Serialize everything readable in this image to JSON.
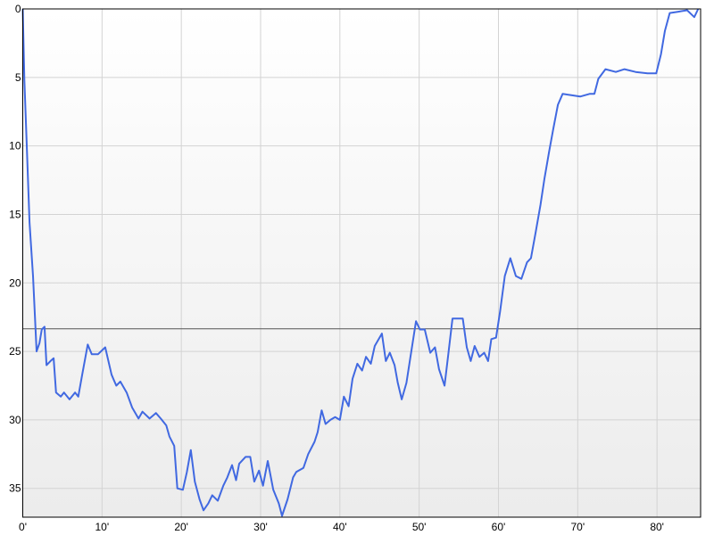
{
  "chart_data": {
    "type": "line",
    "title": "",
    "xlabel": "",
    "ylabel": "",
    "xlim": [
      0,
      85.5
    ],
    "ylim": [
      0,
      37.1
    ],
    "y_inverted": true,
    "grid": true,
    "x_ticks": [
      0,
      10,
      20,
      30,
      40,
      50,
      60,
      70,
      80
    ],
    "x_tick_labels": [
      "0'",
      "10'",
      "20'",
      "30'",
      "40'",
      "50'",
      "60'",
      "70'",
      "80'"
    ],
    "y_ticks": [
      0,
      5,
      10,
      15,
      20,
      25,
      30,
      35
    ],
    "y_tick_labels": [
      "0",
      "5",
      "10",
      "15",
      "20",
      "25",
      "30",
      "35"
    ],
    "reference_line": 23.35,
    "colors": {
      "line": "#4169e1",
      "grid": "#d3d3d3",
      "reference": "#555555",
      "bg_top": "#ffffff",
      "bg_bottom": "#ececec"
    },
    "series": [
      {
        "x": [
          0,
          0.2,
          0.5,
          0.85,
          1.3,
          1.75,
          2.1,
          2.4,
          2.75,
          3.0,
          3.5,
          3.9,
          4.2,
          4.8,
          5.2,
          5.9,
          6.6,
          7.0,
          7.5,
          8.2,
          8.7,
          9.5,
          10.4,
          11.2,
          11.8,
          12.3,
          13.1,
          13.8,
          14.6,
          15.1,
          16,
          16.8,
          17.4,
          18.1,
          18.5,
          19.1,
          19.5,
          20.2,
          20.7,
          21.2,
          21.7,
          22.3,
          22.8,
          23.4,
          23.9,
          24.6,
          25.3,
          25.8,
          26.4,
          26.9,
          27.3,
          28.1,
          28.7,
          29.2,
          29.8,
          30.3,
          30.9,
          31.6,
          32.3,
          32.7,
          33.4,
          34.1,
          34.5,
          35.4,
          36,
          36.8,
          37.2,
          37.7,
          38.2,
          38.8,
          39.4,
          40,
          40.5,
          41.1,
          41.6,
          42.2,
          42.8,
          43.3,
          43.9,
          44.4,
          45.3,
          45.8,
          46.3,
          46.9,
          47.3,
          47.8,
          48.4,
          48.9,
          49.6,
          50.1,
          50.7,
          51.4,
          52,
          52.5,
          53.2,
          53.7,
          54.2,
          54.8,
          55.5,
          56,
          56.5,
          57,
          57.6,
          58.2,
          58.7,
          59.1,
          59.7,
          60.2,
          60.8,
          61.5,
          62.2,
          62.9,
          63.6,
          64.1,
          64.7,
          65.3,
          65.8,
          66.4,
          66.9,
          67.5,
          68.1,
          69.2,
          70.3,
          71.5,
          72.1,
          72.6,
          73.5,
          74.8,
          75.9,
          77.3,
          78.8,
          79.9,
          80.5,
          81,
          81.6,
          82.7,
          83.8,
          84.7,
          85.2
        ],
        "y": [
          0,
          5.2,
          9.8,
          15.6,
          19.5,
          25,
          24.4,
          23.4,
          23.2,
          26,
          25.7,
          25.5,
          28,
          28.3,
          28,
          28.5,
          28,
          28.3,
          26.7,
          24.5,
          25.2,
          25.2,
          24.7,
          26.7,
          27.5,
          27.2,
          28,
          29.1,
          29.9,
          29.4,
          29.9,
          29.5,
          29.9,
          30.4,
          31.2,
          31.9,
          35,
          35.1,
          33.8,
          32.2,
          34.5,
          35.8,
          36.6,
          36.1,
          35.5,
          35.9,
          34.8,
          34.2,
          33.3,
          34.4,
          33.2,
          32.7,
          32.7,
          34.5,
          33.7,
          34.8,
          33,
          35.1,
          36.1,
          37,
          35.8,
          34.2,
          33.8,
          33.5,
          32.5,
          31.6,
          30.9,
          29.3,
          30.3,
          30,
          29.8,
          30,
          28.3,
          29,
          27,
          25.9,
          26.4,
          25.4,
          25.9,
          24.6,
          23.7,
          25.7,
          25.1,
          26,
          27.3,
          28.5,
          27.3,
          25.4,
          22.8,
          23.4,
          23.4,
          25.1,
          24.7,
          26.3,
          27.5,
          25.1,
          22.6,
          22.6,
          22.6,
          24.7,
          25.7,
          24.6,
          25.4,
          25.1,
          25.7,
          24.1,
          24,
          22.1,
          19.5,
          18.2,
          19.5,
          19.7,
          18.5,
          18.2,
          16.3,
          14.3,
          12.4,
          10.4,
          8.8,
          7,
          6.2,
          6.3,
          6.4,
          6.2,
          6.2,
          5.1,
          4.4,
          4.6,
          4.4,
          4.6,
          4.7,
          4.7,
          3.3,
          1.6,
          0.3,
          0.2,
          0.1,
          0.6,
          0
        ]
      }
    ]
  }
}
